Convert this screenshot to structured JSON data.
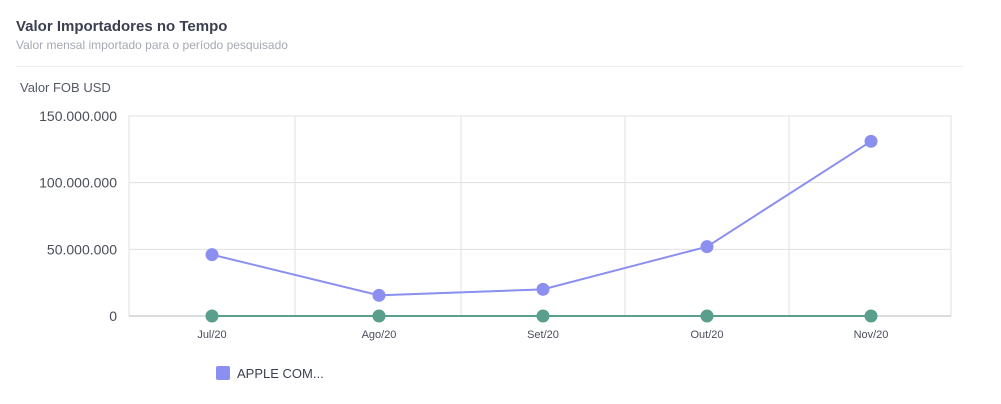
{
  "header": {
    "title": "Valor Importadores no Tempo",
    "subtitle": "Valor mensal importado para o período pesquisado"
  },
  "chart_data": {
    "type": "line",
    "ylabel": "Valor FOB USD",
    "ylim": [
      0,
      150000000
    ],
    "yticks": [
      {
        "value": 0,
        "label": "0"
      },
      {
        "value": 50000000,
        "label": "50.000.000"
      },
      {
        "value": 100000000,
        "label": "100.000.000"
      },
      {
        "value": 150000000,
        "label": "150.000.000"
      }
    ],
    "categories": [
      "Jul/20",
      "Ago/20",
      "Set/20",
      "Out/20",
      "Nov/20"
    ],
    "grid": true,
    "legend_position": "bottom-left",
    "series": [
      {
        "name": "APPLE COM...",
        "color": "#8a8ff0",
        "values": [
          46000000,
          15500000,
          20000000,
          52000000,
          131000000
        ]
      },
      {
        "name": "",
        "color": "#5a9e8c",
        "values": [
          0,
          0,
          0,
          0,
          0
        ]
      }
    ]
  }
}
